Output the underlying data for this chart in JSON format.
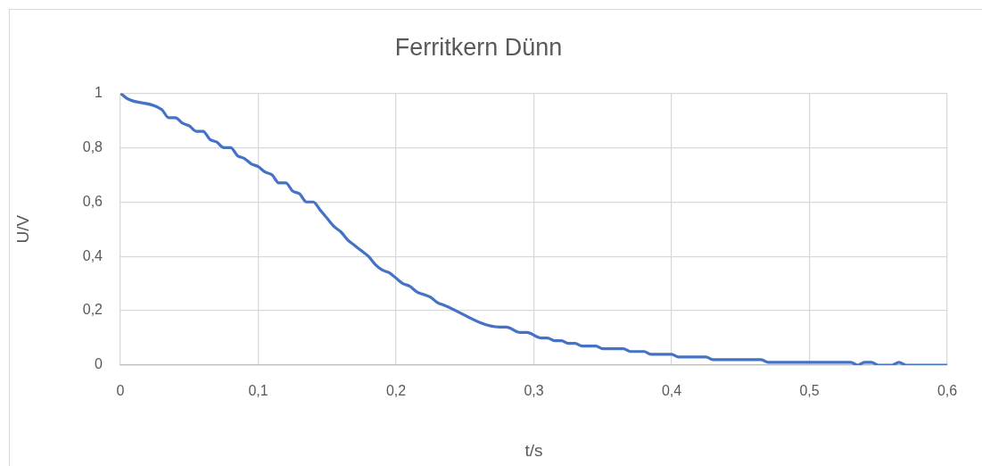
{
  "chart_data": {
    "type": "line",
    "title": "Ferritkern Dünn",
    "xlabel": "t/s",
    "ylabel": "U/V",
    "x": [
      0,
      0.005,
      0.03,
      0.035,
      0.04,
      0.045,
      0.05,
      0.055,
      0.06,
      0.065,
      0.07,
      0.075,
      0.08,
      0.085,
      0.09,
      0.095,
      0.1,
      0.105,
      0.11,
      0.115,
      0.12,
      0.125,
      0.13,
      0.135,
      0.14,
      0.145,
      0.15,
      0.155,
      0.16,
      0.165,
      0.17,
      0.175,
      0.18,
      0.185,
      0.19,
      0.195,
      0.2,
      0.205,
      0.21,
      0.215,
      0.22,
      0.225,
      0.23,
      0.235,
      0.275,
      0.28,
      0.29,
      0.295,
      0.305,
      0.31,
      0.315,
      0.32,
      0.325,
      0.33,
      0.335,
      0.345,
      0.35,
      0.365,
      0.37,
      0.38,
      0.385,
      0.4,
      0.405,
      0.425,
      0.43,
      0.465,
      0.47,
      0.53,
      0.535,
      0.54,
      0.545,
      0.55,
      0.56,
      0.565,
      0.57,
      0.6
    ],
    "values": [
      1,
      0.98,
      0.94,
      0.91,
      0.91,
      0.89,
      0.88,
      0.86,
      0.86,
      0.83,
      0.82,
      0.8,
      0.8,
      0.77,
      0.76,
      0.74,
      0.73,
      0.71,
      0.7,
      0.67,
      0.67,
      0.64,
      0.63,
      0.6,
      0.6,
      0.57,
      0.54,
      0.51,
      0.49,
      0.46,
      0.44,
      0.42,
      0.4,
      0.37,
      0.35,
      0.34,
      0.32,
      0.3,
      0.29,
      0.27,
      0.26,
      0.25,
      0.23,
      0.22,
      0.14,
      0.14,
      0.12,
      0.12,
      0.1,
      0.1,
      0.09,
      0.09,
      0.08,
      0.08,
      0.07,
      0.07,
      0.06,
      0.06,
      0.05,
      0.05,
      0.04,
      0.04,
      0.03,
      0.03,
      0.02,
      0.02,
      0.01,
      0.01,
      0,
      0.01,
      0.01,
      0,
      0,
      0.01,
      0,
      0
    ],
    "color": "#4472c4",
    "marker": "none",
    "line_style": "solid",
    "grid": true,
    "xlim": [
      0,
      0.6
    ],
    "xticks": [
      0,
      {
        "value": 0.1,
        "label": "0,1"
      },
      {
        "value": 0.2,
        "label": "0,2"
      },
      {
        "value": 0.3,
        "label": "0,3"
      },
      {
        "value": 0.4,
        "label": "0,4"
      },
      {
        "value": 0.5,
        "label": "0,5"
      },
      {
        "value": 0.6,
        "label": "0,6"
      }
    ],
    "ylim": [
      0,
      1
    ],
    "yticks": [
      0,
      {
        "value": 0.2,
        "label": "0,2"
      },
      {
        "value": 0.4,
        "label": "0,4"
      },
      {
        "value": 0.6,
        "label": "0,6"
      },
      {
        "value": 0.8,
        "label": "0,8"
      },
      1
    ]
  }
}
